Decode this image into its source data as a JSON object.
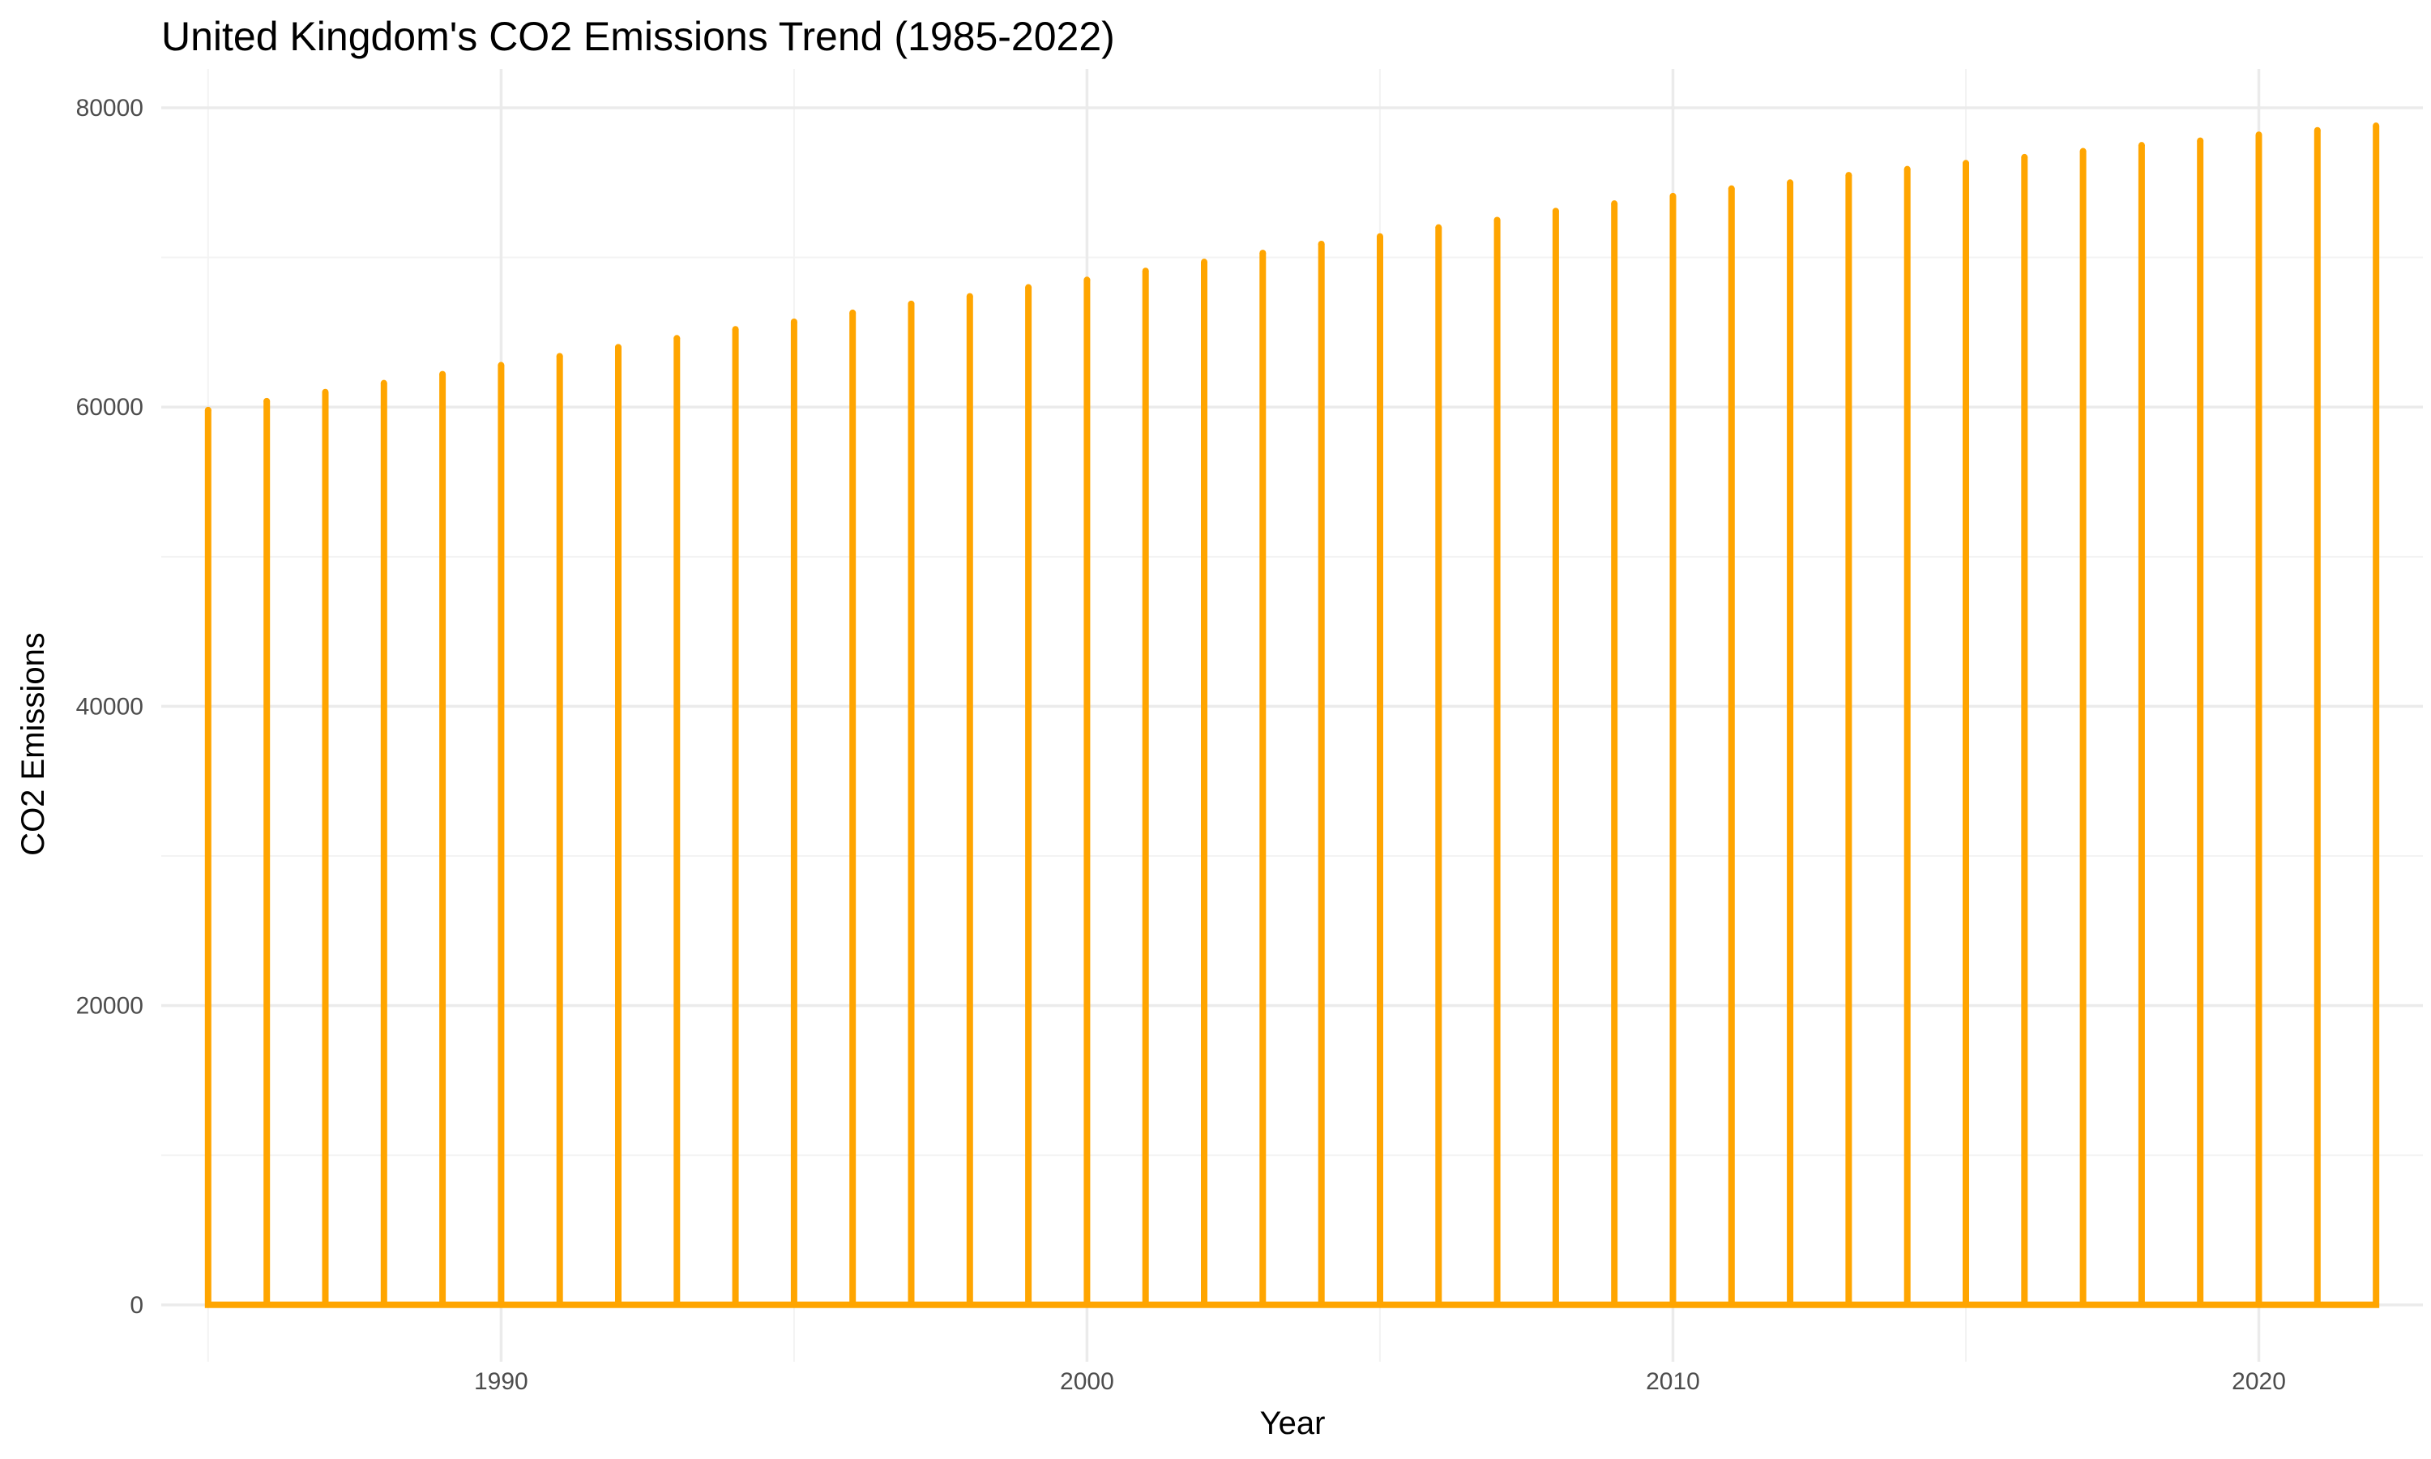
{
  "chart_data": {
    "type": "line",
    "title": "United Kingdom's CO2 Emissions Trend (1985-2022)",
    "xlabel": "Year",
    "ylabel": "CO2 Emissions",
    "xlim": [
      1984.2,
      2022.8
    ],
    "ylim": [
      -3800,
      82600
    ],
    "x_ticks": [
      1990,
      2000,
      2010,
      2020
    ],
    "y_ticks": [
      0,
      20000,
      40000,
      60000,
      80000
    ],
    "x_minor": [
      1985,
      1995,
      2005,
      2015
    ],
    "y_minor": [
      10000,
      30000,
      50000,
      70000
    ],
    "grid": true,
    "legend": "none",
    "color": "#FFA500",
    "series": [
      {
        "x": [
          1985,
          1986,
          1987,
          1988,
          1989,
          1990,
          1991,
          1992,
          1993,
          1994,
          1995,
          1996,
          1997,
          1998,
          1999,
          2000,
          2001,
          2002,
          2003,
          2004,
          2005,
          2006,
          2007,
          2008,
          2009,
          2010,
          2011,
          2012,
          2013,
          2014,
          2015,
          2016,
          2017,
          2018,
          2019,
          2020,
          2021,
          2022
        ],
        "low": [
          0,
          0,
          0,
          0,
          0,
          0,
          0,
          0,
          0,
          0,
          0,
          0,
          0,
          0,
          0,
          0,
          0,
          0,
          0,
          0,
          0,
          0,
          0,
          0,
          0,
          0,
          0,
          0,
          0,
          0,
          0,
          0,
          0,
          0,
          0,
          0,
          0,
          0
        ],
        "high": [
          59800,
          60400,
          61000,
          61600,
          62200,
          62800,
          63400,
          64000,
          64600,
          65200,
          65700,
          66300,
          66900,
          67400,
          68000,
          68500,
          69100,
          69700,
          70300,
          70900,
          71400,
          72000,
          72500,
          73100,
          73600,
          74100,
          74600,
          75000,
          75500,
          75900,
          76300,
          76700,
          77100,
          77500,
          77800,
          78200,
          78500,
          78800
        ]
      }
    ]
  }
}
